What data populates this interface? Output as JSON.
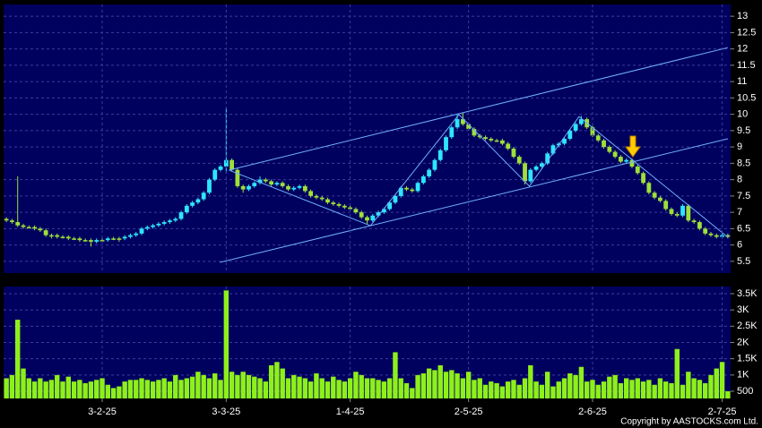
{
  "chart_data": [
    {
      "type": "candlestick",
      "open": [
        6.8,
        6.75,
        6.7,
        6.6,
        6.55,
        6.55,
        6.5,
        6.45,
        6.3,
        6.3,
        6.25,
        6.25,
        6.2,
        6.2,
        6.15,
        6.15,
        6.1,
        6.15,
        6.15,
        6.2,
        6.2,
        6.2,
        6.25,
        6.3,
        6.35,
        6.5,
        6.55,
        6.6,
        6.65,
        6.7,
        6.75,
        6.8,
        7.0,
        7.2,
        7.3,
        7.4,
        7.6,
        8.0,
        8.3,
        8.4,
        8.6,
        8.3,
        7.8,
        7.7,
        7.8,
        7.9,
        8.0,
        7.95,
        7.85,
        7.9,
        7.8,
        7.7,
        7.75,
        7.8,
        7.65,
        7.5,
        7.45,
        7.4,
        7.3,
        7.25,
        7.2,
        7.15,
        7.1,
        7.0,
        6.85,
        6.75,
        6.9,
        7.0,
        7.1,
        7.3,
        7.5,
        7.75,
        7.7,
        7.65,
        7.9,
        8.1,
        8.3,
        8.6,
        8.9,
        9.3,
        9.6,
        9.85,
        9.7,
        9.55,
        9.35,
        9.3,
        9.25,
        9.2,
        9.2,
        9.1,
        8.95,
        8.7,
        8.5,
        7.95,
        8.3,
        8.4,
        8.5,
        8.8,
        9.05,
        9.1,
        9.25,
        9.5,
        9.7,
        9.85,
        9.6,
        9.35,
        9.2,
        9.0,
        8.85,
        8.7,
        8.55,
        8.6,
        8.4,
        8.2,
        7.9,
        7.6,
        7.45,
        7.35,
        7.1,
        6.95,
        6.9,
        7.2,
        6.75,
        6.7,
        6.5,
        6.35,
        6.3,
        6.25,
        6.3
      ],
      "high": [
        6.85,
        6.8,
        8.1,
        6.65,
        6.6,
        6.6,
        6.55,
        6.5,
        6.35,
        6.35,
        6.3,
        6.3,
        6.25,
        6.25,
        6.2,
        6.2,
        6.2,
        6.2,
        6.25,
        6.25,
        6.25,
        6.3,
        6.35,
        6.4,
        6.55,
        6.6,
        6.65,
        6.7,
        6.75,
        6.8,
        6.85,
        7.05,
        7.25,
        7.35,
        7.45,
        7.65,
        8.05,
        8.35,
        8.45,
        10.2,
        8.65,
        8.35,
        7.85,
        7.85,
        7.95,
        8.1,
        8.05,
        8.0,
        7.95,
        7.95,
        7.85,
        7.8,
        7.85,
        7.85,
        7.7,
        7.55,
        7.5,
        7.45,
        7.35,
        7.3,
        7.25,
        7.2,
        7.15,
        7.05,
        6.9,
        6.95,
        7.05,
        7.15,
        7.35,
        7.55,
        7.8,
        7.8,
        7.75,
        7.95,
        8.15,
        8.35,
        8.65,
        8.95,
        9.35,
        9.65,
        10.0,
        10.05,
        9.75,
        9.6,
        9.4,
        9.35,
        9.3,
        9.25,
        9.25,
        9.15,
        9.0,
        8.75,
        8.55,
        8.35,
        8.45,
        8.55,
        8.85,
        9.1,
        9.15,
        9.3,
        9.55,
        9.75,
        9.95,
        9.9,
        9.65,
        9.4,
        9.25,
        9.05,
        8.9,
        8.75,
        8.65,
        8.65,
        8.45,
        8.25,
        7.95,
        7.65,
        7.5,
        7.4,
        7.15,
        7.0,
        7.25,
        7.25,
        6.8,
        6.75,
        6.55,
        6.4,
        6.35,
        6.35,
        6.35
      ],
      "low": [
        6.7,
        6.65,
        6.55,
        6.5,
        6.5,
        6.45,
        6.4,
        6.25,
        6.2,
        6.2,
        6.2,
        6.15,
        6.15,
        6.1,
        6.1,
        5.95,
        6.05,
        6.1,
        6.1,
        6.15,
        6.1,
        6.15,
        6.2,
        6.25,
        6.3,
        6.45,
        6.5,
        6.55,
        6.6,
        6.65,
        6.7,
        6.75,
        6.95,
        7.15,
        7.25,
        7.35,
        7.55,
        7.95,
        8.25,
        8.2,
        8.25,
        7.75,
        7.6,
        7.65,
        7.75,
        7.85,
        7.9,
        7.8,
        7.8,
        7.75,
        7.65,
        7.65,
        7.7,
        7.6,
        7.45,
        7.4,
        7.35,
        7.25,
        7.2,
        7.15,
        7.1,
        7.05,
        6.95,
        6.8,
        6.65,
        6.7,
        6.85,
        6.95,
        7.05,
        7.25,
        7.45,
        7.65,
        7.6,
        7.6,
        7.85,
        8.05,
        8.25,
        8.55,
        8.85,
        9.25,
        9.55,
        9.65,
        9.5,
        9.3,
        9.25,
        9.2,
        9.15,
        9.15,
        9.05,
        8.9,
        8.65,
        8.45,
        7.85,
        7.9,
        8.25,
        8.35,
        8.45,
        8.75,
        9.0,
        9.05,
        9.2,
        9.45,
        9.65,
        9.55,
        9.3,
        9.15,
        8.95,
        8.8,
        8.65,
        8.5,
        8.5,
        8.35,
        8.15,
        7.85,
        7.55,
        7.4,
        7.3,
        7.05,
        6.9,
        6.85,
        6.85,
        6.7,
        6.65,
        6.45,
        6.3,
        6.25,
        6.2,
        6.2,
        6.2
      ],
      "close": [
        6.75,
        6.7,
        6.6,
        6.55,
        6.55,
        6.5,
        6.45,
        6.3,
        6.3,
        6.25,
        6.25,
        6.2,
        6.2,
        6.15,
        6.15,
        6.1,
        6.15,
        6.15,
        6.2,
        6.2,
        6.2,
        6.25,
        6.3,
        6.35,
        6.5,
        6.55,
        6.6,
        6.65,
        6.7,
        6.75,
        6.8,
        7.0,
        7.2,
        7.3,
        7.4,
        7.6,
        8.0,
        8.3,
        8.4,
        8.6,
        8.3,
        7.8,
        7.7,
        7.8,
        7.9,
        8.0,
        7.95,
        7.85,
        7.9,
        7.8,
        7.7,
        7.75,
        7.8,
        7.65,
        7.5,
        7.45,
        7.4,
        7.3,
        7.25,
        7.2,
        7.15,
        7.1,
        7.0,
        6.85,
        6.75,
        6.9,
        7.0,
        7.1,
        7.3,
        7.5,
        7.75,
        7.7,
        7.65,
        7.9,
        8.1,
        8.3,
        8.6,
        8.9,
        9.3,
        9.6,
        9.85,
        9.7,
        9.55,
        9.35,
        9.3,
        9.25,
        9.2,
        9.2,
        9.1,
        8.95,
        8.7,
        8.5,
        7.95,
        8.3,
        8.4,
        8.5,
        8.8,
        9.05,
        9.1,
        9.25,
        9.5,
        9.7,
        9.85,
        9.6,
        9.35,
        9.2,
        9.0,
        8.85,
        8.7,
        8.55,
        8.6,
        8.4,
        8.2,
        7.9,
        7.6,
        7.45,
        7.35,
        7.1,
        6.95,
        6.9,
        7.2,
        6.75,
        6.7,
        6.5,
        6.35,
        6.3,
        6.25,
        6.3,
        6.25
      ],
      "up_color": "#2ee6ff",
      "down_color": "#9ee03a",
      "trendlines": [
        {
          "x": [
            39.5,
            128
          ],
          "y": [
            8.29,
            12.04
          ]
        },
        {
          "x": [
            37.9,
            128
          ],
          "y": [
            5.47,
            9.25
          ]
        },
        {
          "x": [
            39.5,
            64.6,
            80.3,
            92.8,
            101.6,
            128
          ],
          "y": [
            8.29,
            6.59,
            9.99,
            7.8,
            9.93,
            6.24
          ]
        }
      ],
      "trendline_color": "#6fb0ff",
      "ylim": [
        5.14,
        13.36
      ],
      "yticks": [
        5.5,
        6,
        6.5,
        7,
        7.5,
        8,
        8.5,
        9,
        9.5,
        10,
        10.5,
        11,
        11.5,
        12,
        12.5,
        13
      ],
      "grid": true
    },
    {
      "type": "bar",
      "categories": [
        null,
        null,
        null,
        null,
        null,
        null,
        null,
        null,
        null,
        null,
        null,
        null,
        null,
        null,
        null,
        null,
        null,
        "3-2-25",
        null,
        null,
        null,
        null,
        null,
        null,
        null,
        null,
        null,
        null,
        null,
        null,
        null,
        null,
        null,
        null,
        null,
        null,
        null,
        null,
        null,
        "3-3-25",
        null,
        null,
        null,
        null,
        null,
        null,
        null,
        null,
        null,
        null,
        null,
        null,
        null,
        null,
        null,
        null,
        null,
        null,
        null,
        null,
        null,
        "1-4-25",
        null,
        null,
        null,
        null,
        null,
        null,
        null,
        null,
        null,
        null,
        null,
        null,
        null,
        null,
        null,
        null,
        null,
        null,
        null,
        null,
        "2-5-25",
        null,
        null,
        null,
        null,
        null,
        null,
        null,
        null,
        null,
        null,
        null,
        null,
        null,
        null,
        null,
        null,
        null,
        null,
        null,
        null,
        null,
        "2-6-25",
        null,
        null,
        null,
        null,
        null,
        null,
        null,
        null,
        null,
        null,
        null,
        null,
        null,
        null,
        null,
        null,
        null,
        null,
        null,
        null,
        null,
        null,
        "2-7-25",
        null
      ],
      "values": [
        900,
        1000,
        2700,
        1200,
        900,
        800,
        900,
        800,
        850,
        1000,
        800,
        950,
        800,
        850,
        750,
        800,
        850,
        900,
        700,
        600,
        650,
        800,
        850,
        850,
        900,
        850,
        800,
        850,
        900,
        800,
        1000,
        850,
        900,
        950,
        1100,
        1000,
        900,
        1050,
        850,
        3600,
        1100,
        1000,
        1100,
        1000,
        950,
        900,
        800,
        1300,
        1400,
        1200,
        900,
        1000,
        950,
        900,
        800,
        1050,
        900,
        800,
        950,
        850,
        800,
        900,
        1100,
        1000,
        900,
        900,
        850,
        800,
        900,
        1700,
        900,
        750,
        600,
        1000,
        1050,
        1200,
        1150,
        1300,
        1100,
        1150,
        1050,
        900,
        1100,
        850,
        900,
        700,
        800,
        750,
        650,
        800,
        850,
        700,
        900,
        1300,
        800,
        700,
        1100,
        650,
        800,
        900,
        1050,
        1000,
        1250,
        800,
        850,
        700,
        800,
        950,
        1000,
        750,
        900,
        850,
        900,
        800,
        850,
        700,
        900,
        800,
        750,
        1800,
        700,
        1100,
        900,
        850,
        750,
        1000,
        1200,
        1400,
        500
      ],
      "color": "#8ef01a",
      "ylim": [
        280,
        3720
      ],
      "yticks": [
        {
          "value": 500,
          "label": "500"
        },
        {
          "value": 1000,
          "label": "1K"
        },
        {
          "value": 1500,
          "label": "1.5K"
        },
        {
          "value": 2000,
          "label": "2K"
        },
        {
          "value": 2500,
          "label": "2.5K"
        },
        {
          "value": 3000,
          "label": "3K"
        },
        {
          "value": 3500,
          "label": "3.5K"
        }
      ],
      "grid": true
    }
  ],
  "footer": "Copyright by AASTOCKS.com Ltd."
}
